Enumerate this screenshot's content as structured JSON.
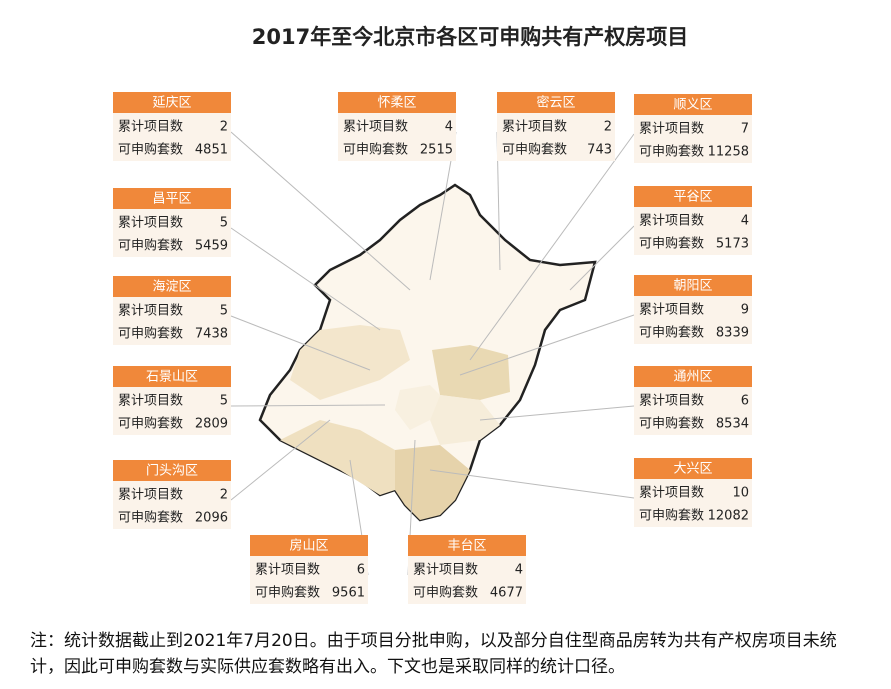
{
  "title": "2017年至今北京市各区可申购共有产权房项目",
  "districts": [
    {
      "name": "延庆区",
      "rows": [
        {
          "label": "累计项目数",
          "value": 2
        },
        {
          "label": "可申购套数",
          "value": 4851
        }
      ]
    },
    {
      "name": "怀柔区",
      "rows": [
        {
          "label": "累计项目数",
          "value": 4
        },
        {
          "label": "可申购套数",
          "value": 2515
        }
      ]
    },
    {
      "name": "密云区",
      "rows": [
        {
          "label": "累计项目数",
          "value": 2
        },
        {
          "label": "可申购套数",
          "value": 743
        }
      ]
    },
    {
      "name": "顺义区",
      "rows": [
        {
          "label": "累计项目数",
          "value": 7
        },
        {
          "label": "可申购套数",
          "value": 11258
        }
      ]
    },
    {
      "name": "昌平区",
      "rows": [
        {
          "label": "累计项目数",
          "value": 5
        },
        {
          "label": "可申购套数",
          "value": 5459
        }
      ]
    },
    {
      "name": "平谷区",
      "rows": [
        {
          "label": "累计项目数",
          "value": 4
        },
        {
          "label": "可申购套数",
          "value": 5173
        }
      ]
    },
    {
      "name": "海淀区",
      "rows": [
        {
          "label": "累计项目数",
          "value": 5
        },
        {
          "label": "可申购套数",
          "value": 7438
        }
      ]
    },
    {
      "name": "朝阳区",
      "rows": [
        {
          "label": "累计项目数",
          "value": 9
        },
        {
          "label": "可申购套数",
          "value": 8339
        }
      ]
    },
    {
      "name": "石景山区",
      "rows": [
        {
          "label": "累计项目数",
          "value": 5
        },
        {
          "label": "可申购套数",
          "value": 2809
        }
      ]
    },
    {
      "name": "通州区",
      "rows": [
        {
          "label": "累计项目数",
          "value": 6
        },
        {
          "label": "可申购套数",
          "value": 8534
        }
      ]
    },
    {
      "name": "门头沟区",
      "rows": [
        {
          "label": "累计项目数",
          "value": 2
        },
        {
          "label": "可申购套数",
          "value": 2096
        }
      ]
    },
    {
      "name": "大兴区",
      "rows": [
        {
          "label": "累计项目数",
          "value": 10
        },
        {
          "label": "可申购套数",
          "value": 12082
        }
      ]
    },
    {
      "name": "房山区",
      "rows": [
        {
          "label": "累计项目数",
          "value": 6
        },
        {
          "label": "可申购套数",
          "value": 9561
        }
      ]
    },
    {
      "name": "丰台区",
      "rows": [
        {
          "label": "累计项目数",
          "value": 4
        },
        {
          "label": "可申购套数",
          "value": 4677
        }
      ]
    }
  ],
  "note": "注：统计数据截止到2021年7月20日。由于项目分批申购，以及部分自住型商品房转为共有产权房项目未统计，因此可申购套数与实际供应套数略有出入。下文也是采取同样的统计口径。"
}
